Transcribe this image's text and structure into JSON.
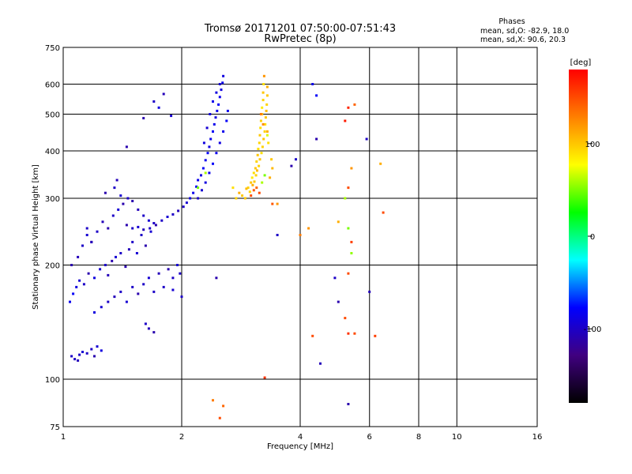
{
  "chart_data": {
    "type": "scatter",
    "title": "Tromsø 20171201 07:50:00-07:51:43",
    "subtitle": "RwPretec (8p)",
    "xlabel": "Frequency [MHz]",
    "ylabel": "Stationary phase Virtual Height [km]",
    "x_scale": "log",
    "y_scale": "log",
    "xlim": [
      1,
      16
    ],
    "ylim": [
      75,
      750
    ],
    "x_ticks": [
      1,
      2,
      4,
      6,
      8,
      10,
      16
    ],
    "y_ticks": [
      75,
      100,
      200,
      300,
      400,
      500,
      600,
      750
    ],
    "grid": true,
    "legend": {
      "heading": "Phases",
      "lines": [
        "mean, sd,O: -82.9, 18.0",
        "mean, sd,X:  90.6, 20.3"
      ]
    },
    "colorbar": {
      "label": "[deg]",
      "range": [
        -180,
        180
      ],
      "ticks": [
        100,
        0,
        -100
      ],
      "colors": [
        "#ff0000",
        "#ff8000",
        "#ffff00",
        "#00ff00",
        "#00ffff",
        "#0000ff",
        "#400080",
        "#000000"
      ]
    },
    "series": [
      {
        "name": "O",
        "points": [
          [
            1.05,
            115,
            -100
          ],
          [
            1.07,
            113,
            -100
          ],
          [
            1.09,
            112,
            -105
          ],
          [
            1.1,
            116,
            -100
          ],
          [
            1.12,
            118,
            -95
          ],
          [
            1.15,
            117,
            -100
          ],
          [
            1.18,
            120,
            -100
          ],
          [
            1.2,
            115,
            -110
          ],
          [
            1.22,
            122,
            -95
          ],
          [
            1.25,
            119,
            -90
          ],
          [
            1.04,
            160,
            -85
          ],
          [
            1.06,
            168,
            -80
          ],
          [
            1.08,
            175,
            -90
          ],
          [
            1.1,
            182,
            -95
          ],
          [
            1.13,
            178,
            -100
          ],
          [
            1.16,
            190,
            -110
          ],
          [
            1.2,
            185,
            -90
          ],
          [
            1.24,
            195,
            -95
          ],
          [
            1.28,
            200,
            -100
          ],
          [
            1.3,
            188,
            -105
          ],
          [
            1.33,
            205,
            -110
          ],
          [
            1.36,
            210,
            -95
          ],
          [
            1.4,
            215,
            -100
          ],
          [
            1.44,
            198,
            -110
          ],
          [
            1.47,
            220,
            -105
          ],
          [
            1.5,
            230,
            -100
          ],
          [
            1.54,
            215,
            -95
          ],
          [
            1.58,
            240,
            -100
          ],
          [
            1.62,
            225,
            -110
          ],
          [
            1.67,
            245,
            -95
          ],
          [
            1.05,
            200,
            -110
          ],
          [
            1.09,
            210,
            -105
          ],
          [
            1.12,
            225,
            -100
          ],
          [
            1.15,
            240,
            -95
          ],
          [
            1.18,
            230,
            -115
          ],
          [
            1.22,
            245,
            -100
          ],
          [
            1.26,
            260,
            -105
          ],
          [
            1.3,
            250,
            -110
          ],
          [
            1.34,
            270,
            -100
          ],
          [
            1.38,
            280,
            -95
          ],
          [
            1.42,
            290,
            -110
          ],
          [
            1.35,
            320,
            -100
          ],
          [
            1.37,
            335,
            -105
          ],
          [
            1.4,
            305,
            -95
          ],
          [
            1.46,
            300,
            -100
          ],
          [
            1.5,
            295,
            -110
          ],
          [
            1.55,
            280,
            -105
          ],
          [
            1.6,
            270,
            -100
          ],
          [
            1.65,
            262,
            -95
          ],
          [
            1.7,
            258,
            -100
          ],
          [
            1.45,
            255,
            -110
          ],
          [
            1.5,
            250,
            -100
          ],
          [
            1.55,
            252,
            -95
          ],
          [
            1.6,
            248,
            -105
          ],
          [
            1.66,
            250,
            -100
          ],
          [
            1.72,
            255,
            -110
          ],
          [
            1.78,
            262,
            -100
          ],
          [
            1.84,
            268,
            -95
          ],
          [
            1.9,
            272,
            -100
          ],
          [
            1.96,
            278,
            -105
          ],
          [
            2.02,
            285,
            -100
          ],
          [
            2.06,
            292,
            -95
          ],
          [
            2.1,
            300,
            -90
          ],
          [
            2.14,
            310,
            -85
          ],
          [
            2.18,
            322,
            -80
          ],
          [
            2.2,
            335,
            -85
          ],
          [
            2.24,
            345,
            -90
          ],
          [
            2.27,
            360,
            -80
          ],
          [
            2.3,
            378,
            -85
          ],
          [
            2.33,
            395,
            -80
          ],
          [
            2.35,
            410,
            -90
          ],
          [
            2.37,
            430,
            -85
          ],
          [
            2.4,
            450,
            -80
          ],
          [
            2.42,
            470,
            -85
          ],
          [
            2.44,
            490,
            -90
          ],
          [
            2.46,
            510,
            -85
          ],
          [
            2.48,
            530,
            -80
          ],
          [
            2.5,
            555,
            -85
          ],
          [
            2.52,
            580,
            -90
          ],
          [
            2.54,
            605,
            -85
          ],
          [
            2.2,
            300,
            -100
          ],
          [
            2.25,
            315,
            -95
          ],
          [
            2.3,
            330,
            -90
          ],
          [
            2.35,
            350,
            -85
          ],
          [
            2.4,
            370,
            -80
          ],
          [
            2.45,
            395,
            -85
          ],
          [
            2.5,
            420,
            -90
          ],
          [
            2.55,
            450,
            -85
          ],
          [
            2.6,
            480,
            -80
          ],
          [
            2.62,
            510,
            -85
          ],
          [
            2.28,
            420,
            -90
          ],
          [
            2.32,
            460,
            -95
          ],
          [
            2.36,
            500,
            -90
          ],
          [
            2.4,
            540,
            -85
          ],
          [
            2.45,
            570,
            -90
          ],
          [
            2.5,
            600,
            -95
          ],
          [
            2.55,
            630,
            -90
          ],
          [
            1.2,
            150,
            -90
          ],
          [
            1.25,
            155,
            -95
          ],
          [
            1.3,
            160,
            -100
          ],
          [
            1.35,
            165,
            -105
          ],
          [
            1.4,
            170,
            -100
          ],
          [
            1.45,
            160,
            -95
          ],
          [
            1.5,
            175,
            -100
          ],
          [
            1.55,
            168,
            -110
          ],
          [
            1.6,
            178,
            -100
          ],
          [
            1.65,
            185,
            -95
          ],
          [
            1.7,
            170,
            -100
          ],
          [
            1.75,
            190,
            -105
          ],
          [
            1.8,
            175,
            -100
          ],
          [
            1.85,
            195,
            -110
          ],
          [
            1.9,
            185,
            -100
          ],
          [
            1.95,
            200,
            -95
          ],
          [
            1.98,
            190,
            -100
          ],
          [
            1.62,
            140,
            -100
          ],
          [
            1.65,
            136,
            -105
          ],
          [
            1.7,
            133,
            -110
          ],
          [
            1.15,
            250,
            -100
          ],
          [
            1.28,
            310,
            -110
          ],
          [
            1.18,
            230,
            -105
          ],
          [
            1.45,
            410,
            -110
          ],
          [
            1.6,
            488,
            -110
          ],
          [
            1.7,
            540,
            -100
          ],
          [
            1.8,
            565,
            -105
          ],
          [
            1.75,
            520,
            -90
          ],
          [
            1.88,
            495,
            -95
          ],
          [
            2.45,
            185,
            -110
          ],
          [
            2.0,
            165,
            -100
          ],
          [
            1.9,
            172,
            -95
          ],
          [
            3.8,
            365,
            -110
          ],
          [
            3.9,
            380,
            -100
          ],
          [
            4.4,
            430,
            -110
          ],
          [
            4.5,
            110,
            -105
          ],
          [
            4.9,
            185,
            -100
          ],
          [
            5.0,
            160,
            -110
          ],
          [
            5.3,
            86,
            -110
          ],
          [
            5.9,
            430,
            -100
          ],
          [
            4.3,
            600,
            -85
          ],
          [
            4.4,
            560,
            -80
          ],
          [
            3.5,
            240,
            -100
          ],
          [
            6.0,
            170,
            -105
          ]
        ]
      },
      {
        "name": "X",
        "points": [
          [
            2.8,
            310,
            110
          ],
          [
            2.9,
            300,
            100
          ],
          [
            2.95,
            320,
            95
          ],
          [
            3.0,
            330,
            100
          ],
          [
            3.02,
            340,
            85
          ],
          [
            3.05,
            350,
            90
          ],
          [
            3.08,
            360,
            100
          ],
          [
            3.1,
            375,
            95
          ],
          [
            3.12,
            390,
            100
          ],
          [
            3.13,
            405,
            90
          ],
          [
            3.15,
            420,
            95
          ],
          [
            3.16,
            440,
            100
          ],
          [
            3.17,
            460,
            90
          ],
          [
            3.18,
            480,
            95
          ],
          [
            3.2,
            500,
            100
          ],
          [
            3.2,
            520,
            85
          ],
          [
            3.22,
            545,
            95
          ],
          [
            3.22,
            570,
            100
          ],
          [
            3.23,
            600,
            90
          ],
          [
            3.24,
            630,
            120
          ],
          [
            2.85,
            305,
            100
          ],
          [
            2.92,
            318,
            105
          ],
          [
            2.98,
            312,
            95
          ],
          [
            3.03,
            325,
            110
          ],
          [
            3.06,
            332,
            100
          ],
          [
            3.09,
            345,
            95
          ],
          [
            3.11,
            355,
            105
          ],
          [
            3.14,
            365,
            95
          ],
          [
            3.16,
            380,
            100
          ],
          [
            3.19,
            395,
            90
          ],
          [
            3.21,
            410,
            95
          ],
          [
            3.23,
            430,
            100
          ],
          [
            3.25,
            450,
            95
          ],
          [
            3.26,
            470,
            90
          ],
          [
            3.27,
            490,
            100
          ],
          [
            3.28,
            510,
            105
          ],
          [
            3.29,
            530,
            95
          ],
          [
            3.3,
            560,
            100
          ],
          [
            3.3,
            590,
            110
          ],
          [
            3.0,
            305,
            150
          ],
          [
            3.05,
            315,
            145
          ],
          [
            3.1,
            320,
            140
          ],
          [
            3.15,
            310,
            150
          ],
          [
            3.2,
            330,
            60
          ],
          [
            3.25,
            345,
            50
          ],
          [
            3.18,
            500,
            130
          ],
          [
            3.22,
            470,
            125
          ],
          [
            2.75,
            300,
            95
          ],
          [
            2.7,
            320,
            90
          ],
          [
            3.35,
            340,
            110
          ],
          [
            3.4,
            360,
            105
          ],
          [
            3.38,
            380,
            100
          ],
          [
            3.32,
            420,
            90
          ],
          [
            3.3,
            440,
            70
          ],
          [
            5.3,
            320,
            150
          ],
          [
            5.4,
            230,
            155
          ],
          [
            5.3,
            190,
            150
          ],
          [
            5.2,
            145,
            150
          ],
          [
            5.3,
            132,
            160
          ],
          [
            5.5,
            132,
            150
          ],
          [
            5.4,
            360,
            120
          ],
          [
            6.5,
            275,
            150
          ],
          [
            6.4,
            370,
            110
          ],
          [
            5.2,
            480,
            170
          ],
          [
            5.3,
            520,
            165
          ],
          [
            5.5,
            530,
            140
          ],
          [
            3.25,
            101,
            160
          ],
          [
            3.5,
            290,
            120
          ],
          [
            5.2,
            300,
            60
          ],
          [
            5.3,
            250,
            50
          ],
          [
            5.4,
            215,
            55
          ],
          [
            6.2,
            130,
            155
          ],
          [
            4.3,
            130,
            150
          ],
          [
            2.4,
            88,
            130
          ],
          [
            2.55,
            85,
            140
          ],
          [
            2.5,
            79,
            150
          ],
          [
            3.3,
            450,
            110
          ],
          [
            2.3,
            350,
            60
          ],
          [
            2.2,
            320,
            50
          ],
          [
            3.4,
            290,
            145
          ],
          [
            4.0,
            240,
            130
          ],
          [
            4.2,
            250,
            120
          ],
          [
            5.0,
            260,
            110
          ]
        ]
      }
    ]
  }
}
